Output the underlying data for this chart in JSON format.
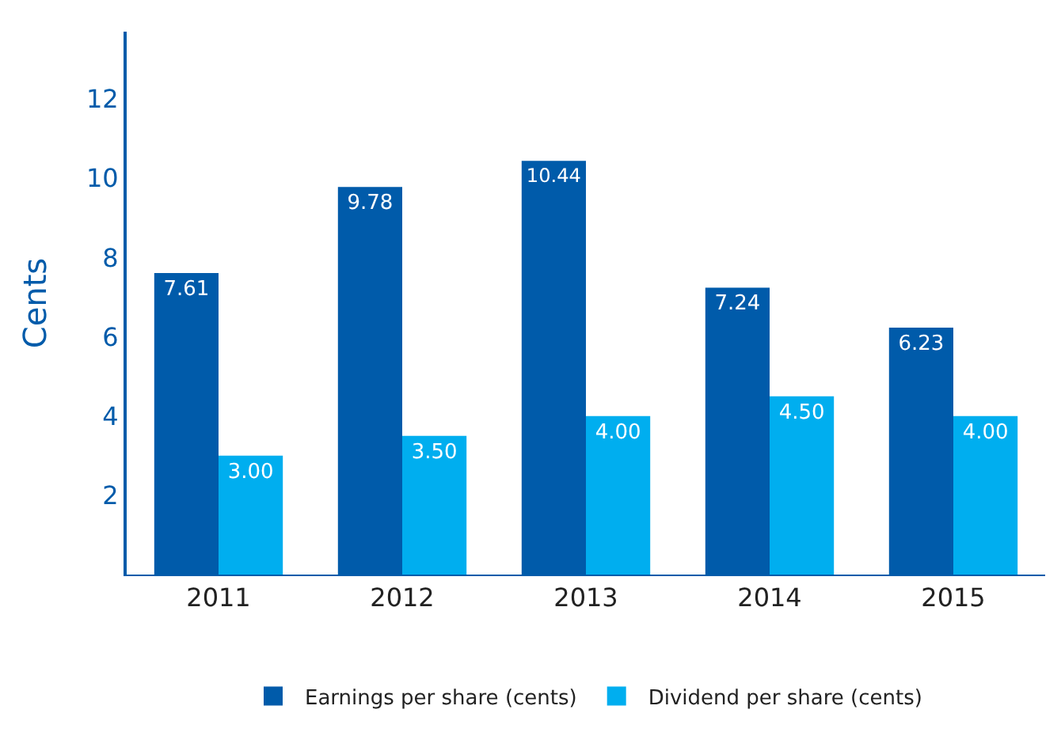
{
  "chart_data": {
    "type": "bar",
    "ylabel": "Cents",
    "categories": [
      "2011",
      "2012",
      "2013",
      "2014",
      "2015"
    ],
    "series": [
      {
        "name": "Earnings per share (cents)",
        "color": "#005baa",
        "values": [
          7.61,
          9.78,
          10.44,
          7.24,
          6.23
        ],
        "value_labels": [
          "7.61",
          "9.78",
          "10.44",
          "7.24",
          "6.23"
        ]
      },
      {
        "name": "Dividend per share (cents)",
        "color": "#00aeef",
        "values": [
          3,
          3.5,
          4,
          4.5,
          4
        ],
        "value_labels": [
          "3.00",
          "3.50",
          "4.00",
          "4.50",
          "4.00"
        ]
      }
    ],
    "ylim": [
      0,
      13.7
    ],
    "yticks": [
      2,
      4,
      6,
      8,
      10,
      12
    ],
    "grid": false,
    "legend": "bottom"
  }
}
